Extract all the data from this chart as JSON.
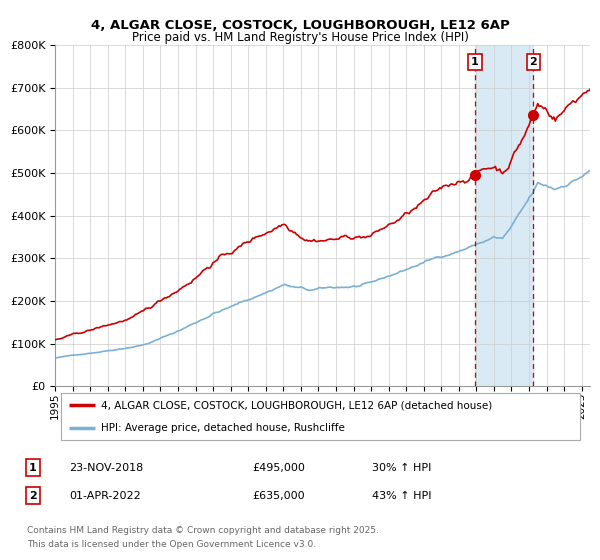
{
  "title1": "4, ALGAR CLOSE, COSTOCK, LOUGHBOROUGH, LE12 6AP",
  "title2": "Price paid vs. HM Land Registry's House Price Index (HPI)",
  "legend_label_red": "4, ALGAR CLOSE, COSTOCK, LOUGHBOROUGH, LE12 6AP (detached house)",
  "legend_label_blue": "HPI: Average price, detached house, Rushcliffe",
  "sale1_date": "23-NOV-2018",
  "sale1_price": "£495,000",
  "sale1_hpi": "30% ↑ HPI",
  "sale2_date": "01-APR-2022",
  "sale2_price": "£635,000",
  "sale2_hpi": "43% ↑ HPI",
  "footnote1": "Contains HM Land Registry data © Crown copyright and database right 2025.",
  "footnote2": "This data is licensed under the Open Government Licence v3.0.",
  "xlim_start": 1995.0,
  "xlim_end": 2025.5,
  "ylim_min": 0,
  "ylim_max": 800000,
  "sale1_x": 2018.917,
  "sale2_x": 2022.25,
  "shade_start": 2018.917,
  "shade_end": 2022.25,
  "red_color": "#cc0000",
  "blue_color": "#7ab0d4",
  "shade_color": "#daeaf5",
  "vline_color": "#cc0000",
  "grid_color": "#cccccc",
  "bg_color": "#ffffff",
  "legend_border_color": "#aaaaaa",
  "footnote_color": "#666666"
}
